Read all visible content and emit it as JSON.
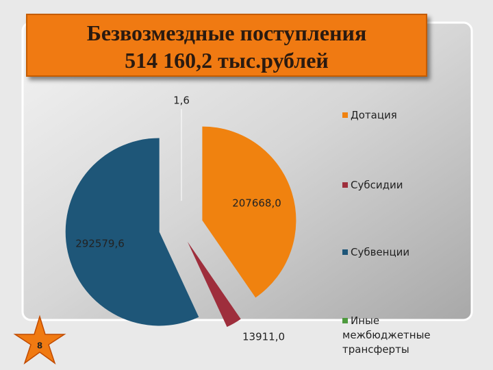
{
  "chart_data": {
    "type": "pie",
    "title": "Безвозмездные  поступления",
    "subtitle": "514 160,2  тыс.рублей",
    "categories": [
      "Дотация",
      "Субсидии",
      "Субвенции",
      "Иные межбюджетные трансферты"
    ],
    "values": [
      207668.0,
      13911.0,
      292579.6,
      1.6
    ],
    "value_labels": [
      "207668,0",
      "13911,0",
      "292579,6",
      "1,6"
    ],
    "colors": [
      "#f0820f",
      "#9e2e3c",
      "#1e5678",
      "#4e9a3e"
    ],
    "legend": "right"
  },
  "slide": {
    "number": "8"
  }
}
